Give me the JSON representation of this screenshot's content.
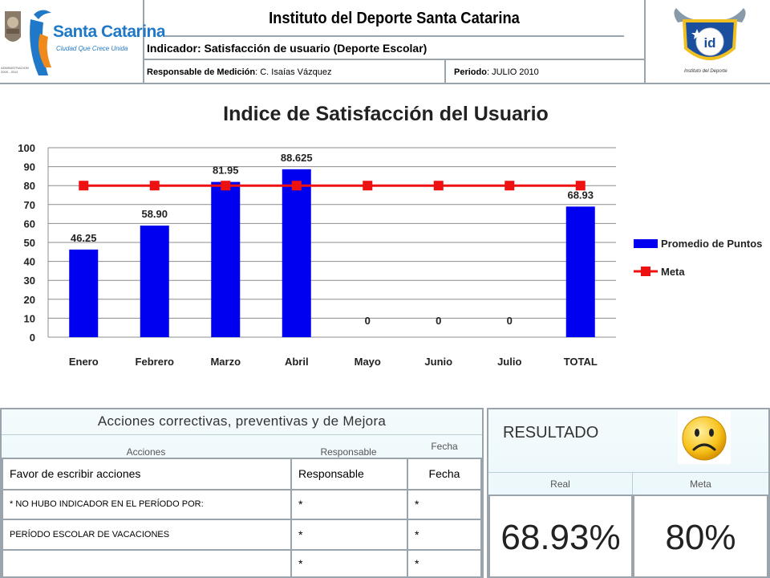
{
  "header": {
    "logo_text": "Santa Catarina",
    "logo_tagline": "Ciudad Que Crece Unida",
    "seal_caption": "ADMINISTRACION 2009 - 2012",
    "right_logo_text": "Instituto del Deporte",
    "title": "Instituto del Deporte Santa Catarina",
    "indicator": "Indicador: Satisfacción de usuario (Deporte Escolar)",
    "responsible_label": "Responsable de Medición",
    "responsible_name": "C. Isaías Vázquez",
    "period_label": "Periodo",
    "period_value": "JULIO 2010"
  },
  "chart_data": {
    "type": "bar",
    "title": "Indice de Satisfacción del Usuario",
    "categories": [
      "Enero",
      "Febrero",
      "Marzo",
      "Abril",
      "Mayo",
      "Junio",
      "Julio",
      "TOTAL"
    ],
    "series": [
      {
        "name": "Promedio de Puntos",
        "type": "bar",
        "values": [
          46.25,
          58.9,
          81.95,
          88.625,
          0,
          0,
          0,
          68.93
        ],
        "labels": [
          "46.25",
          "58.90",
          "81.95",
          "88.625",
          "0",
          "0",
          "0",
          "68.93"
        ]
      },
      {
        "name": "Meta",
        "type": "line",
        "values": [
          80,
          80,
          80,
          80,
          80,
          80,
          80,
          80
        ]
      }
    ],
    "ylim": [
      0,
      100
    ],
    "yticks": [
      0,
      10,
      20,
      30,
      40,
      50,
      60,
      70,
      80,
      90,
      100
    ],
    "grid": true,
    "legend_position": "right",
    "colors": {
      "bar": "#0000f0",
      "line": "#ee1111"
    }
  },
  "actions": {
    "title": "Acciones correctivas, preventivas y de Mejora",
    "col_acciones": "Acciones",
    "col_responsable": "Responsable",
    "col_fecha": "Fecha",
    "rows": [
      {
        "accion": "Favor de escribir acciones",
        "responsable": "Responsable",
        "fecha": "Fecha"
      },
      {
        "accion": "* NO HUBO INDICADOR EN EL PERÍODO POR:",
        "responsable": "*",
        "fecha": "*"
      },
      {
        "accion": "PERÍODO ESCOLAR DE VACACIONES",
        "responsable": "*",
        "fecha": "*"
      },
      {
        "accion": "",
        "responsable": "*",
        "fecha": "*"
      }
    ]
  },
  "result": {
    "title": "RESULTADO",
    "status_icon": "sad-face-icon",
    "real_label": "Real",
    "meta_label": "Meta",
    "real_value": "68.93%",
    "meta_value": "80%"
  }
}
